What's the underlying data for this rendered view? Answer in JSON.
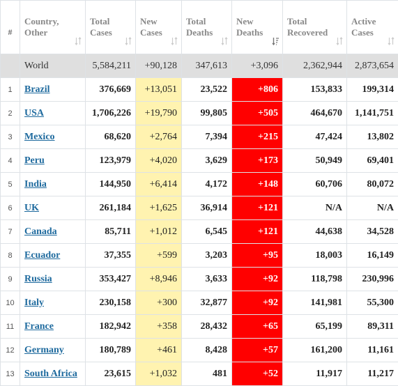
{
  "headers": {
    "hash": "#",
    "country": [
      "Country,",
      "Other"
    ],
    "total_cases": [
      "Total",
      "Cases"
    ],
    "new_cases": [
      "New",
      "Cases"
    ],
    "total_deaths": [
      "Total",
      "Deaths"
    ],
    "new_deaths": [
      "New",
      "Deaths"
    ],
    "total_recovered": [
      "Total",
      "Recovered"
    ],
    "active_cases": [
      "Active",
      "Cases"
    ]
  },
  "world": {
    "name": "World",
    "total_cases": "5,584,211",
    "new_cases": "+90,128",
    "total_deaths": "347,613",
    "new_deaths": "+3,096",
    "total_recovered": "2,362,944",
    "active_cases": "2,873,654"
  },
  "rows": [
    {
      "num": "1",
      "country": "Brazil",
      "total_cases": "376,669",
      "new_cases": "+13,051",
      "total_deaths": "23,522",
      "new_deaths": "+806",
      "total_recovered": "153,833",
      "active_cases": "199,314"
    },
    {
      "num": "2",
      "country": "USA",
      "total_cases": "1,706,226",
      "new_cases": "+19,790",
      "total_deaths": "99,805",
      "new_deaths": "+505",
      "total_recovered": "464,670",
      "active_cases": "1,141,751"
    },
    {
      "num": "3",
      "country": "Mexico",
      "total_cases": "68,620",
      "new_cases": "+2,764",
      "total_deaths": "7,394",
      "new_deaths": "+215",
      "total_recovered": "47,424",
      "active_cases": "13,802"
    },
    {
      "num": "4",
      "country": "Peru",
      "total_cases": "123,979",
      "new_cases": "+4,020",
      "total_deaths": "3,629",
      "new_deaths": "+173",
      "total_recovered": "50,949",
      "active_cases": "69,401"
    },
    {
      "num": "5",
      "country": "India",
      "total_cases": "144,950",
      "new_cases": "+6,414",
      "total_deaths": "4,172",
      "new_deaths": "+148",
      "total_recovered": "60,706",
      "active_cases": "80,072"
    },
    {
      "num": "6",
      "country": "UK",
      "total_cases": "261,184",
      "new_cases": "+1,625",
      "total_deaths": "36,914",
      "new_deaths": "+121",
      "total_recovered": "N/A",
      "active_cases": "N/A"
    },
    {
      "num": "7",
      "country": "Canada",
      "total_cases": "85,711",
      "new_cases": "+1,012",
      "total_deaths": "6,545",
      "new_deaths": "+121",
      "total_recovered": "44,638",
      "active_cases": "34,528"
    },
    {
      "num": "8",
      "country": "Ecuador",
      "total_cases": "37,355",
      "new_cases": "+599",
      "total_deaths": "3,203",
      "new_deaths": "+95",
      "total_recovered": "18,003",
      "active_cases": "16,149"
    },
    {
      "num": "9",
      "country": "Russia",
      "total_cases": "353,427",
      "new_cases": "+8,946",
      "total_deaths": "3,633",
      "new_deaths": "+92",
      "total_recovered": "118,798",
      "active_cases": "230,996"
    },
    {
      "num": "10",
      "country": "Italy",
      "total_cases": "230,158",
      "new_cases": "+300",
      "total_deaths": "32,877",
      "new_deaths": "+92",
      "total_recovered": "141,981",
      "active_cases": "55,300"
    },
    {
      "num": "11",
      "country": "France",
      "total_cases": "182,942",
      "new_cases": "+358",
      "total_deaths": "28,432",
      "new_deaths": "+65",
      "total_recovered": "65,199",
      "active_cases": "89,311"
    },
    {
      "num": "12",
      "country": "Germany",
      "total_cases": "180,789",
      "new_cases": "+461",
      "total_deaths": "8,428",
      "new_deaths": "+57",
      "total_recovered": "161,200",
      "active_cases": "11,161"
    },
    {
      "num": "13",
      "country": "South Africa",
      "total_cases": "23,615",
      "new_cases": "+1,032",
      "total_deaths": "481",
      "new_deaths": "+52",
      "total_recovered": "11,917",
      "active_cases": "11,217"
    }
  ],
  "colors": {
    "new_cases_bg": "#fff3b0",
    "new_deaths_bg": "#ff0000",
    "world_row_bg": "#dfdfdf",
    "link": "#1e6a9e"
  },
  "icons": {
    "sort_default": "sort-arrows-icon",
    "sort_active": "sort-desc-icon"
  }
}
